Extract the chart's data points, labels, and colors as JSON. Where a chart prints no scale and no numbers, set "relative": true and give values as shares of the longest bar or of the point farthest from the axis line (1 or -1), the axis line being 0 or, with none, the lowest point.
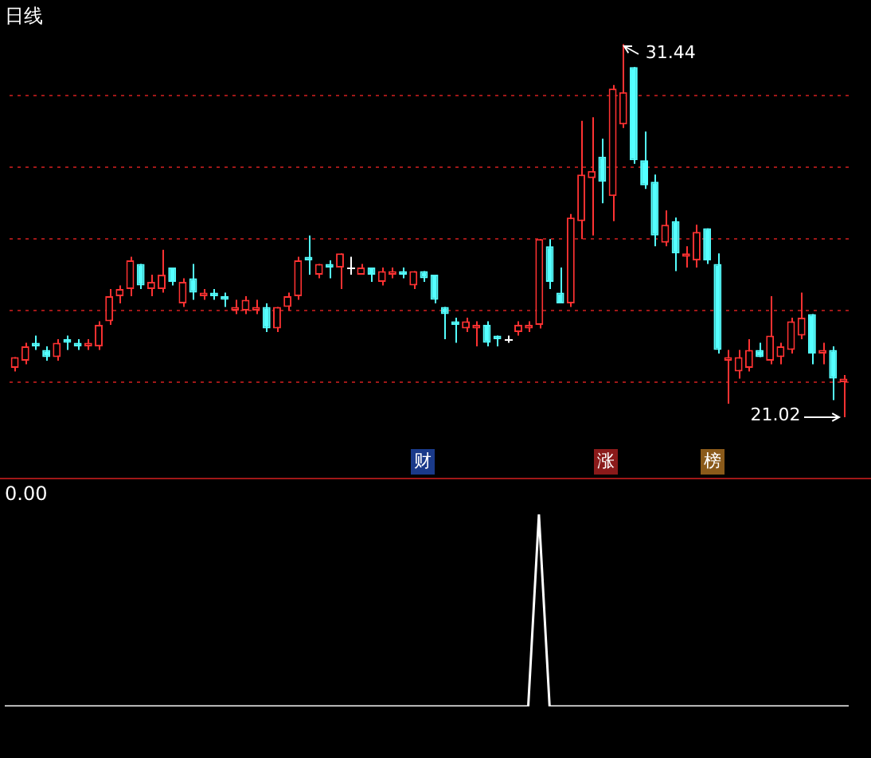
{
  "chart_data": [
    {
      "type": "candlestick",
      "title": "日线",
      "categories": [
        null,
        null,
        null,
        null,
        null,
        null,
        null,
        null,
        null,
        null,
        null,
        null,
        null,
        null,
        null,
        null,
        null,
        null,
        null,
        null,
        null,
        null,
        null,
        null,
        null,
        null,
        null,
        null,
        null,
        null,
        null,
        null,
        null,
        null,
        null,
        null,
        null,
        null,
        null,
        null,
        null,
        null,
        null,
        null,
        null,
        null,
        null,
        null,
        null,
        null,
        null,
        null,
        null,
        null,
        null,
        null,
        null,
        null,
        null,
        null,
        null,
        null,
        null,
        null,
        null,
        null,
        null,
        null,
        null,
        null,
        null,
        null,
        null,
        null,
        null,
        null,
        null,
        null,
        null,
        null
      ],
      "ohlc": [
        [
          22.4,
          22.7,
          22.3,
          22.7
        ],
        [
          22.6,
          23.1,
          22.5,
          23.0
        ],
        [
          23.1,
          23.3,
          22.9,
          23.0
        ],
        [
          22.9,
          23.0,
          22.6,
          22.7
        ],
        [
          22.7,
          23.2,
          22.6,
          23.1
        ],
        [
          23.2,
          23.3,
          22.9,
          23.1
        ],
        [
          23.1,
          23.2,
          22.9,
          23.0
        ],
        [
          23.0,
          23.2,
          22.9,
          23.1
        ],
        [
          23.0,
          23.7,
          22.9,
          23.6
        ],
        [
          23.7,
          24.6,
          23.6,
          24.4
        ],
        [
          24.4,
          24.7,
          24.2,
          24.6
        ],
        [
          24.6,
          25.5,
          24.4,
          25.4
        ],
        [
          25.3,
          25.3,
          24.6,
          24.7
        ],
        [
          24.6,
          25.0,
          24.4,
          24.8
        ],
        [
          24.6,
          25.7,
          24.5,
          25.0
        ],
        [
          25.2,
          25.2,
          24.7,
          24.8
        ],
        [
          24.2,
          24.9,
          24.1,
          24.8
        ],
        [
          24.9,
          25.3,
          24.3,
          24.5
        ],
        [
          24.4,
          24.6,
          24.3,
          24.5
        ],
        [
          24.5,
          24.6,
          24.3,
          24.4
        ],
        [
          24.4,
          24.5,
          24.1,
          24.3
        ],
        [
          24.0,
          24.3,
          23.9,
          24.1
        ],
        [
          24.0,
          24.4,
          23.9,
          24.3
        ],
        [
          24.0,
          24.3,
          23.9,
          24.1
        ],
        [
          24.1,
          24.2,
          23.4,
          23.5
        ],
        [
          23.5,
          24.1,
          23.4,
          24.1
        ],
        [
          24.1,
          24.5,
          24.0,
          24.4
        ],
        [
          24.4,
          25.5,
          24.3,
          25.4
        ],
        [
          25.5,
          26.1,
          25.0,
          25.4
        ],
        [
          25.0,
          25.3,
          24.9,
          25.3
        ],
        [
          25.3,
          25.4,
          24.9,
          25.2
        ],
        [
          25.2,
          25.6,
          24.6,
          25.6
        ],
        [
          25.2,
          25.5,
          25.0,
          25.2
        ],
        [
          25.0,
          25.3,
          25.0,
          25.2
        ],
        [
          25.2,
          25.2,
          24.8,
          25.0
        ],
        [
          24.8,
          25.2,
          24.7,
          25.1
        ],
        [
          25.0,
          25.2,
          24.9,
          25.1
        ],
        [
          25.1,
          25.2,
          24.9,
          25.0
        ],
        [
          24.7,
          25.1,
          24.6,
          25.1
        ],
        [
          25.1,
          25.1,
          24.8,
          24.9
        ],
        [
          25.0,
          25.0,
          24.2,
          24.3
        ],
        [
          24.1,
          24.1,
          23.2,
          23.9
        ],
        [
          23.7,
          23.8,
          23.1,
          23.6
        ],
        [
          23.5,
          23.8,
          23.4,
          23.7
        ],
        [
          23.5,
          23.7,
          23.0,
          23.6
        ],
        [
          23.6,
          23.7,
          23.0,
          23.1
        ],
        [
          23.3,
          23.3,
          23.0,
          23.2
        ],
        [
          23.2,
          23.3,
          23.1,
          23.2
        ],
        [
          23.4,
          23.7,
          23.3,
          23.6
        ],
        [
          23.5,
          23.7,
          23.4,
          23.6
        ],
        [
          23.6,
          26.0,
          23.5,
          26.0
        ],
        [
          25.8,
          26.0,
          24.6,
          24.8
        ],
        [
          24.5,
          25.2,
          24.2,
          24.2
        ],
        [
          24.2,
          26.7,
          24.1,
          26.6
        ],
        [
          26.5,
          29.3,
          26.0,
          27.8
        ],
        [
          27.7,
          29.4,
          26.1,
          27.9
        ],
        [
          28.3,
          28.8,
          27.0,
          27.6
        ],
        [
          27.2,
          30.3,
          26.5,
          30.2
        ],
        [
          29.2,
          31.44,
          29.1,
          30.1
        ],
        [
          30.8,
          30.8,
          28.1,
          28.2
        ],
        [
          28.2,
          29.0,
          27.4,
          27.5
        ],
        [
          27.6,
          27.8,
          25.8,
          26.1
        ],
        [
          25.9,
          26.8,
          25.8,
          26.4
        ],
        [
          26.5,
          26.6,
          25.1,
          25.6
        ],
        [
          25.5,
          25.8,
          25.2,
          25.6
        ],
        [
          25.4,
          26.4,
          25.2,
          26.2
        ],
        [
          26.3,
          26.3,
          25.3,
          25.4
        ],
        [
          25.3,
          25.6,
          22.8,
          22.9
        ],
        [
          22.6,
          22.9,
          21.4,
          22.7
        ],
        [
          22.3,
          22.9,
          22.1,
          22.7
        ],
        [
          22.4,
          23.2,
          22.3,
          22.9
        ],
        [
          22.9,
          23.1,
          22.7,
          22.7
        ],
        [
          22.6,
          24.4,
          22.5,
          23.3
        ],
        [
          22.7,
          23.1,
          22.5,
          23.0
        ],
        [
          22.9,
          23.8,
          22.8,
          23.7
        ],
        [
          23.3,
          24.5,
          23.2,
          23.8
        ],
        [
          23.9,
          23.9,
          22.5,
          22.8
        ],
        [
          22.8,
          23.1,
          22.5,
          22.9
        ],
        [
          22.9,
          23.0,
          21.5,
          22.1
        ],
        [
          22.0,
          22.2,
          21.02,
          22.1
        ]
      ],
      "yticks": [
        {
          "value": 22,
          "label": null
        },
        {
          "value": 24,
          "label": null
        },
        {
          "value": 26,
          "label": null
        },
        {
          "value": 28,
          "label": null
        },
        {
          "value": 30,
          "label": null
        }
      ],
      "grid": "y",
      "legend": false,
      "annotations": [
        "31.44",
        "21.02",
        "财",
        "涨",
        "榜"
      ]
    },
    {
      "type": "line",
      "title": "0.00",
      "relative": true,
      "legend": false,
      "marker": "none",
      "line_style": "solid",
      "categories": [
        null,
        null,
        null,
        null,
        null,
        null,
        null,
        null,
        null,
        null,
        null,
        null,
        null,
        null,
        null,
        null,
        null,
        null,
        null,
        null,
        null,
        null,
        null,
        null,
        null,
        null,
        null,
        null,
        null,
        null,
        null,
        null,
        null,
        null,
        null,
        null,
        null,
        null,
        null,
        null,
        null,
        null,
        null,
        null,
        null,
        null,
        null,
        null,
        null,
        null,
        null,
        null,
        null,
        null,
        null,
        null,
        null,
        null,
        null,
        null,
        null,
        null,
        null,
        null,
        null,
        null,
        null,
        null,
        null,
        null,
        null,
        null,
        null,
        null,
        null,
        null,
        null,
        null,
        null,
        null
      ],
      "series": [
        {
          "color": "#ffffff",
          "values": [
            0,
            0,
            0,
            0,
            0,
            0,
            0,
            0,
            0,
            0,
            0,
            0,
            0,
            0,
            0,
            0,
            0,
            0,
            0,
            0,
            0,
            0,
            0,
            0,
            0,
            0,
            0,
            0,
            0,
            0,
            0,
            0,
            0,
            0,
            0,
            0,
            0,
            0,
            0,
            0,
            0,
            0,
            0,
            0,
            0,
            0,
            0,
            0,
            0,
            0,
            1,
            0,
            0,
            0,
            0,
            0,
            0,
            0,
            0,
            0,
            0,
            0,
            0,
            0,
            0,
            0,
            0,
            0,
            0,
            0,
            0,
            0,
            0,
            0,
            0,
            0,
            0,
            0,
            0,
            0
          ]
        }
      ]
    }
  ]
}
